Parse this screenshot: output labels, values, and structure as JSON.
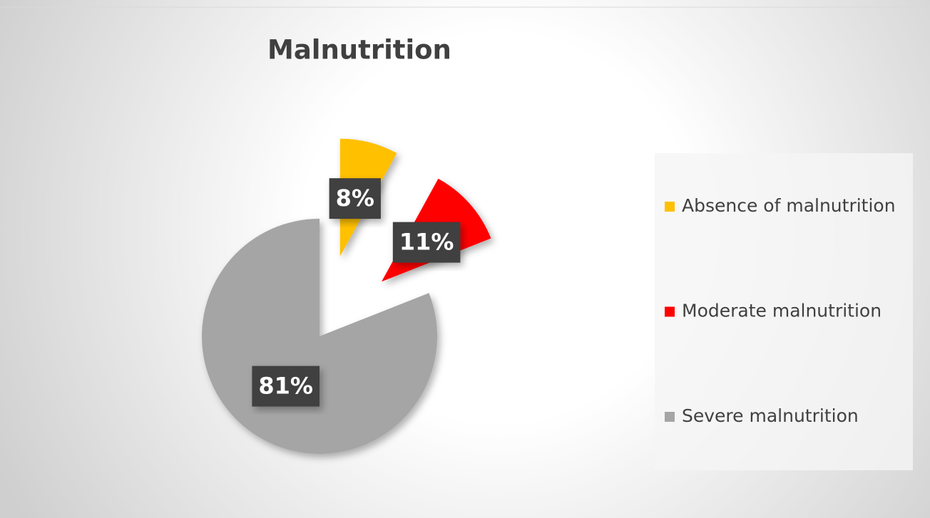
{
  "chart_data": {
    "type": "pie",
    "title": "Malnutrition",
    "categories": [
      "Absence of malnutrition",
      "Moderate malnutrition",
      "Severe malnutrition"
    ],
    "values": [
      8,
      11,
      81
    ],
    "value_labels": [
      "8%",
      "11%",
      "81%"
    ],
    "colors": [
      "#ffc000",
      "#ff0000",
      "#a5a5a5"
    ],
    "legend": "right"
  }
}
